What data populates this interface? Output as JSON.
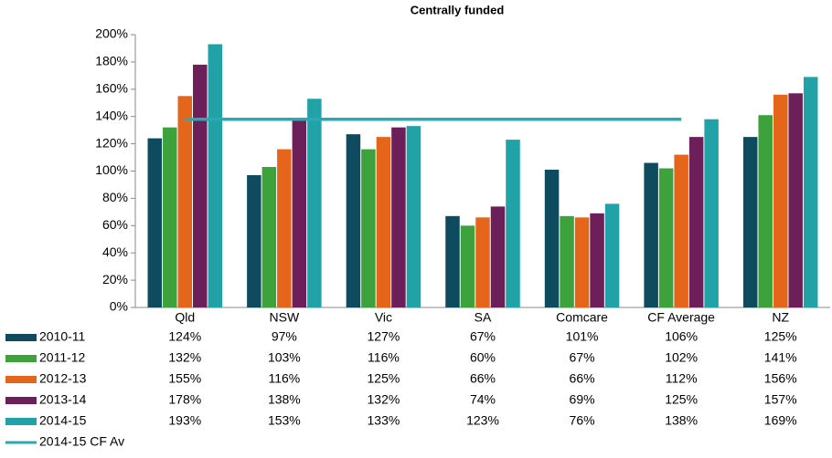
{
  "chart_data": {
    "type": "bar",
    "title": "Centrally funded",
    "categories": [
      "Qld",
      "NSW",
      "Vic",
      "SA",
      "Comcare",
      "CF Average",
      "NZ"
    ],
    "ylim": [
      0,
      200
    ],
    "yticks": [
      {
        "value": 0,
        "label": "0%"
      },
      {
        "value": 20,
        "label": "20%"
      },
      {
        "value": 40,
        "label": "40%"
      },
      {
        "value": 60,
        "label": "60%"
      },
      {
        "value": 80,
        "label": "80%"
      },
      {
        "value": 100,
        "label": "100%"
      },
      {
        "value": 120,
        "label": "120%"
      },
      {
        "value": 140,
        "label": "140%"
      },
      {
        "value": 160,
        "label": "160%"
      },
      {
        "value": 180,
        "label": "180%"
      },
      {
        "value": 200,
        "label": "200%"
      }
    ],
    "grid": false,
    "series": [
      {
        "name": "2010-11",
        "color": "#0f4b5e",
        "values": [
          124,
          97,
          127,
          67,
          101,
          106,
          125
        ],
        "value_labels": [
          "124%",
          "97%",
          "127%",
          "67%",
          "101%",
          "106%",
          "125%"
        ]
      },
      {
        "name": "2011-12",
        "color": "#3da23c",
        "values": [
          132,
          103,
          116,
          60,
          67,
          102,
          141
        ],
        "value_labels": [
          "132%",
          "103%",
          "116%",
          "60%",
          "67%",
          "102%",
          "141%"
        ]
      },
      {
        "name": "2012-13",
        "color": "#e5661b",
        "values": [
          155,
          116,
          125,
          66,
          66,
          112,
          156
        ],
        "value_labels": [
          "155%",
          "116%",
          "125%",
          "66%",
          "66%",
          "112%",
          "156%"
        ]
      },
      {
        "name": "2013-14",
        "color": "#6c1f58",
        "values": [
          178,
          138,
          132,
          74,
          69,
          125,
          157
        ],
        "value_labels": [
          "178%",
          "138%",
          "132%",
          "74%",
          "69%",
          "125%",
          "157%"
        ]
      },
      {
        "name": "2014-15",
        "color": "#20a2a7",
        "values": [
          193,
          153,
          133,
          123,
          76,
          138,
          169
        ],
        "value_labels": [
          "193%",
          "153%",
          "133%",
          "123%",
          "76%",
          "138%",
          "169%"
        ]
      },
      {
        "name": "2014-15 CF Av",
        "type": "line",
        "color": "#2aa9b2",
        "values": [
          138,
          138,
          138,
          138,
          138,
          138,
          null
        ]
      }
    ]
  }
}
